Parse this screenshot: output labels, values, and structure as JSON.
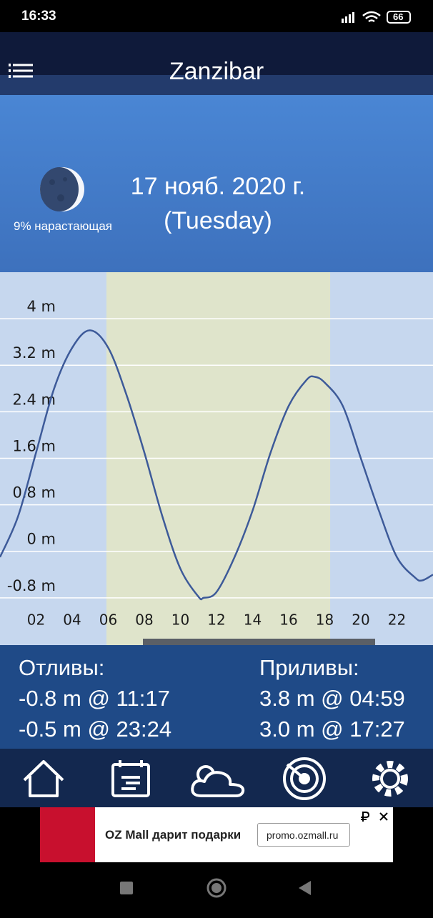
{
  "status_bar": {
    "time": "16:33",
    "battery": "66"
  },
  "header": {
    "title": "Zanzibar"
  },
  "moon": {
    "phase_label": "9% нарастающая"
  },
  "date": {
    "line1": "17 нояб. 2020 г.",
    "line2": "(Tuesday)"
  },
  "chart_data": {
    "type": "line",
    "x": [
      0,
      1,
      2,
      3,
      4,
      4.98,
      6,
      7,
      8,
      9,
      10,
      11,
      11.28,
      12,
      13,
      14,
      15,
      16,
      17,
      17.45,
      18,
      19,
      20,
      21,
      22,
      23,
      23.4,
      24
    ],
    "series": [
      {
        "color": "#3d5a99",
        "values": [
          -0.1,
          0.6,
          1.7,
          2.8,
          3.5,
          3.8,
          3.5,
          2.7,
          1.7,
          0.6,
          -0.3,
          -0.78,
          -0.8,
          -0.7,
          -0.1,
          0.7,
          1.7,
          2.5,
          2.95,
          3.0,
          2.9,
          2.5,
          1.6,
          0.7,
          -0.1,
          -0.45,
          -0.5,
          -0.4
        ]
      }
    ],
    "xlim": [
      0,
      24
    ],
    "xticks": [
      {
        "value": 2,
        "label": "02"
      },
      {
        "value": 4,
        "label": "04"
      },
      {
        "value": 6,
        "label": "06"
      },
      {
        "value": 8,
        "label": "08"
      },
      {
        "value": 10,
        "label": "10"
      },
      12,
      14,
      16,
      18,
      20,
      22
    ],
    "ylim": [
      -0.9,
      4.8
    ],
    "yticks": [
      {
        "value": 4,
        "label": "4 m"
      },
      {
        "value": 3.2,
        "label": "3.2 m"
      },
      {
        "value": 2.4,
        "label": "2.4 m"
      },
      {
        "value": 1.6,
        "label": "1.6 m"
      },
      {
        "value": 0.8,
        "label": "0.8 m"
      },
      {
        "value": 0,
        "label": "0 m"
      },
      {
        "value": -0.8,
        "label": "-0.8 m"
      }
    ],
    "grid": true,
    "background_color": "#c6d7ee",
    "daylight": [
      5.9,
      18.3
    ],
    "daylight_color": "#dfe4cb"
  },
  "tides": {
    "low_title": "Отливы:",
    "lows": [
      "-0.8 m @ 11:17",
      "-0.5 m @ 23:24"
    ],
    "high_title": "Приливы:",
    "highs": [
      "3.8 m @ 04:59",
      "3.0 m @ 17:27"
    ]
  },
  "ad": {
    "title": "OZ Mall дарит подарки",
    "url": "promo.ozmall.ru"
  }
}
